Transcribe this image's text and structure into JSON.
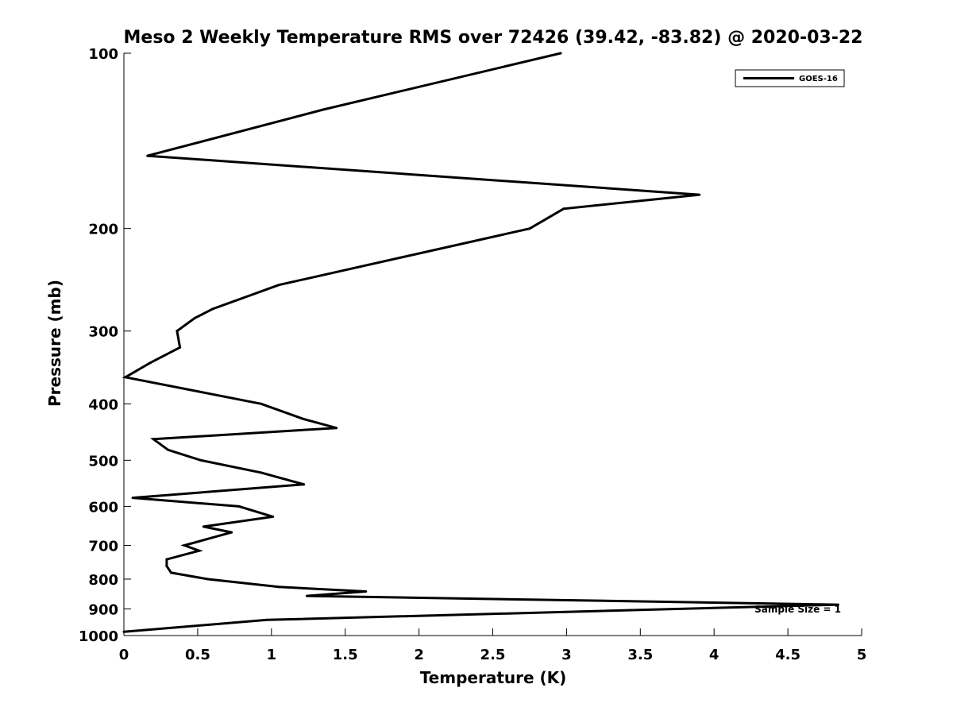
{
  "chart_data": {
    "type": "line",
    "title": "Meso 2 Weekly Temperature RMS over 72426 (39.42, -83.82) @ 2020-03-22",
    "xlabel": "Temperature (K)",
    "ylabel": "Pressure (mb)",
    "xlim": [
      0,
      5
    ],
    "ylim": [
      100,
      1000
    ],
    "y_scale": "log",
    "y_reversed": true,
    "grid": false,
    "legend_position": "top-right",
    "x_ticks": [
      "0",
      "0.5",
      "1",
      "1.5",
      "2",
      "2.5",
      "3",
      "3.5",
      "4",
      "4.5",
      "5"
    ],
    "y_ticks": [
      "100",
      "200",
      "300",
      "400",
      "500",
      "600",
      "700",
      "800",
      "900",
      "1000"
    ],
    "annotation": "Sample Size = 1",
    "series": [
      {
        "name": "GOES-16",
        "color": "#000000",
        "points": [
          {
            "x": 2.96,
            "p": 100
          },
          {
            "x": 1.35,
            "p": 125
          },
          {
            "x": 0.16,
            "p": 150
          },
          {
            "x": 3.9,
            "p": 175
          },
          {
            "x": 2.98,
            "p": 185
          },
          {
            "x": 2.75,
            "p": 200
          },
          {
            "x": 1.05,
            "p": 250
          },
          {
            "x": 0.6,
            "p": 275
          },
          {
            "x": 0.48,
            "p": 285
          },
          {
            "x": 0.36,
            "p": 300
          },
          {
            "x": 0.38,
            "p": 320
          },
          {
            "x": 0.18,
            "p": 340
          },
          {
            "x": 0.01,
            "p": 360
          },
          {
            "x": 0.93,
            "p": 400
          },
          {
            "x": 1.22,
            "p": 425
          },
          {
            "x": 1.44,
            "p": 440
          },
          {
            "x": 0.2,
            "p": 460
          },
          {
            "x": 0.3,
            "p": 480
          },
          {
            "x": 0.52,
            "p": 500
          },
          {
            "x": 0.93,
            "p": 525
          },
          {
            "x": 1.22,
            "p": 550
          },
          {
            "x": 0.06,
            "p": 580
          },
          {
            "x": 0.78,
            "p": 600
          },
          {
            "x": 1.01,
            "p": 625
          },
          {
            "x": 0.54,
            "p": 650
          },
          {
            "x": 0.73,
            "p": 665
          },
          {
            "x": 0.41,
            "p": 700
          },
          {
            "x": 0.51,
            "p": 715
          },
          {
            "x": 0.29,
            "p": 740
          },
          {
            "x": 0.29,
            "p": 760
          },
          {
            "x": 0.32,
            "p": 780
          },
          {
            "x": 0.57,
            "p": 800
          },
          {
            "x": 1.05,
            "p": 825
          },
          {
            "x": 1.64,
            "p": 840
          },
          {
            "x": 1.24,
            "p": 855
          },
          {
            "x": 4.84,
            "p": 885
          },
          {
            "x": 0.97,
            "p": 940
          },
          {
            "x": 0.0,
            "p": 985
          }
        ]
      }
    ]
  }
}
